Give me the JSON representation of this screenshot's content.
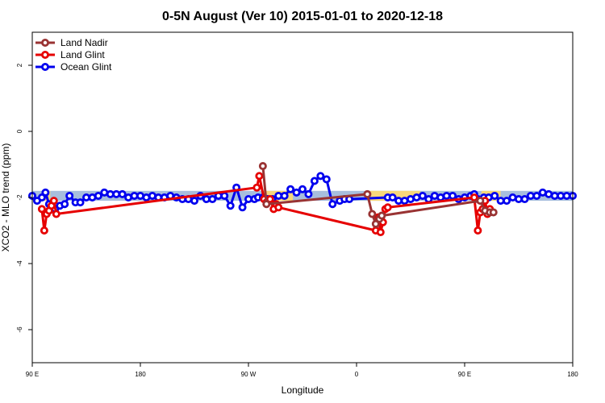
{
  "chart_data": {
    "type": "line",
    "title": "0-5N August (Ver 10)   2015-01-01 to 2020-12-18",
    "xlabel": "Longitude",
    "ylabel": "XCO2 - MLO trend (ppm)",
    "xlim": [
      90,
      540
    ],
    "ylim": [
      -7,
      3
    ],
    "x_ticks": [
      {
        "value": 90,
        "label": "90 E"
      },
      {
        "value": 180,
        "label": "180"
      },
      {
        "value": 270,
        "label": "90 W"
      },
      {
        "value": 360,
        "label": "0"
      },
      {
        "value": 450,
        "label": "90 E"
      },
      {
        "value": 540,
        "label": "180"
      }
    ],
    "y_ticks": [
      {
        "value": -6,
        "label": "-6"
      },
      {
        "value": -4,
        "label": "-4"
      },
      {
        "value": -2,
        "label": "-2"
      },
      {
        "value": 0,
        "label": "0"
      },
      {
        "value": 2,
        "label": "2"
      }
    ],
    "legend_position": "top-left",
    "background_band": {
      "y_range": [
        -2.1,
        -1.8
      ],
      "ocean_color": "#a7bedd",
      "land_color": "#f7d77b",
      "land_segments": [
        [
          98,
          105
        ],
        [
          282,
          307
        ],
        [
          370,
          413
        ],
        [
          464,
          480
        ]
      ]
    },
    "series": [
      {
        "name": "Land Nadir",
        "color": "#993333",
        "x": [
          282,
          285,
          369,
          373,
          376,
          379,
          381,
          463,
          467,
          471,
          474
        ],
        "y": [
          -1.05,
          -2.2,
          -1.9,
          -2.5,
          -2.8,
          -2.65,
          -2.55,
          -2.1,
          -2.4,
          -2.45,
          -2.45
        ]
      },
      {
        "name": "Land Glint",
        "color": "#e60000",
        "x": [
          98,
          100,
          102,
          104,
          106,
          108,
          110,
          277,
          279,
          283,
          285,
          288,
          291,
          293,
          295,
          376,
          378,
          380,
          382,
          384,
          386,
          458,
          461,
          463,
          465,
          467,
          469,
          471
        ],
        "y": [
          -2.35,
          -3.0,
          -2.5,
          -2.4,
          -2.25,
          -2.1,
          -2.5,
          -1.7,
          -1.35,
          -2.05,
          -2.15,
          -2.05,
          -2.35,
          -2.2,
          -2.3,
          -3.0,
          -2.6,
          -3.05,
          -2.75,
          -2.35,
          -2.3,
          -2.0,
          -3.0,
          -2.45,
          -2.35,
          -2.1,
          -2.5,
          -2.35
        ]
      },
      {
        "name": "Ocean Glint",
        "color": "#0000ee",
        "x": [
          90,
          94,
          98,
          101,
          104,
          109,
          113,
          117,
          121,
          126,
          130,
          135,
          140,
          145,
          150,
          155,
          160,
          165,
          170,
          175,
          180,
          185,
          190,
          195,
          200,
          205,
          210,
          215,
          220,
          225,
          230,
          235,
          240,
          245,
          250,
          255,
          260,
          265,
          270,
          275,
          278,
          282,
          286,
          290,
          295,
          300,
          305,
          310,
          315,
          320,
          325,
          330,
          335,
          340,
          346,
          350,
          354,
          386,
          390,
          395,
          400,
          405,
          410,
          415,
          420,
          425,
          430,
          435,
          440,
          445,
          450,
          455,
          458,
          461,
          466,
          470,
          475,
          480,
          485,
          490,
          495,
          500,
          505,
          510,
          515,
          520,
          525,
          530,
          535,
          540
        ],
        "y": [
          -1.95,
          -2.1,
          -2.0,
          -1.85,
          -2.2,
          -2.35,
          -2.25,
          -2.2,
          -1.95,
          -2.15,
          -2.15,
          -2.0,
          -2.0,
          -1.95,
          -1.85,
          -1.9,
          -1.9,
          -1.9,
          -2.0,
          -1.95,
          -1.95,
          -2.0,
          -1.95,
          -2.0,
          -2.0,
          -1.95,
          -2.0,
          -2.05,
          -2.05,
          -2.1,
          -1.95,
          -2.05,
          -2.05,
          -1.95,
          -1.95,
          -2.25,
          -1.7,
          -2.3,
          -2.05,
          -2.05,
          -2.0,
          -2.0,
          -2.05,
          -2.05,
          -1.95,
          -1.95,
          -1.75,
          -1.85,
          -1.75,
          -1.9,
          -1.5,
          -1.35,
          -1.45,
          -2.2,
          -2.1,
          -2.05,
          -2.05,
          -2.0,
          -2.0,
          -2.1,
          -2.1,
          -2.05,
          -2.0,
          -1.95,
          -2.05,
          -1.95,
          -2.0,
          -1.95,
          -1.95,
          -2.05,
          -2.0,
          -1.95,
          -1.9,
          -2.05,
          -2.0,
          -2.0,
          -1.95,
          -2.1,
          -2.1,
          -2.0,
          -2.05,
          -2.05,
          -1.95,
          -1.95,
          -1.85,
          -1.9,
          -1.95,
          -1.95,
          -1.95,
          -1.95
        ]
      }
    ]
  }
}
